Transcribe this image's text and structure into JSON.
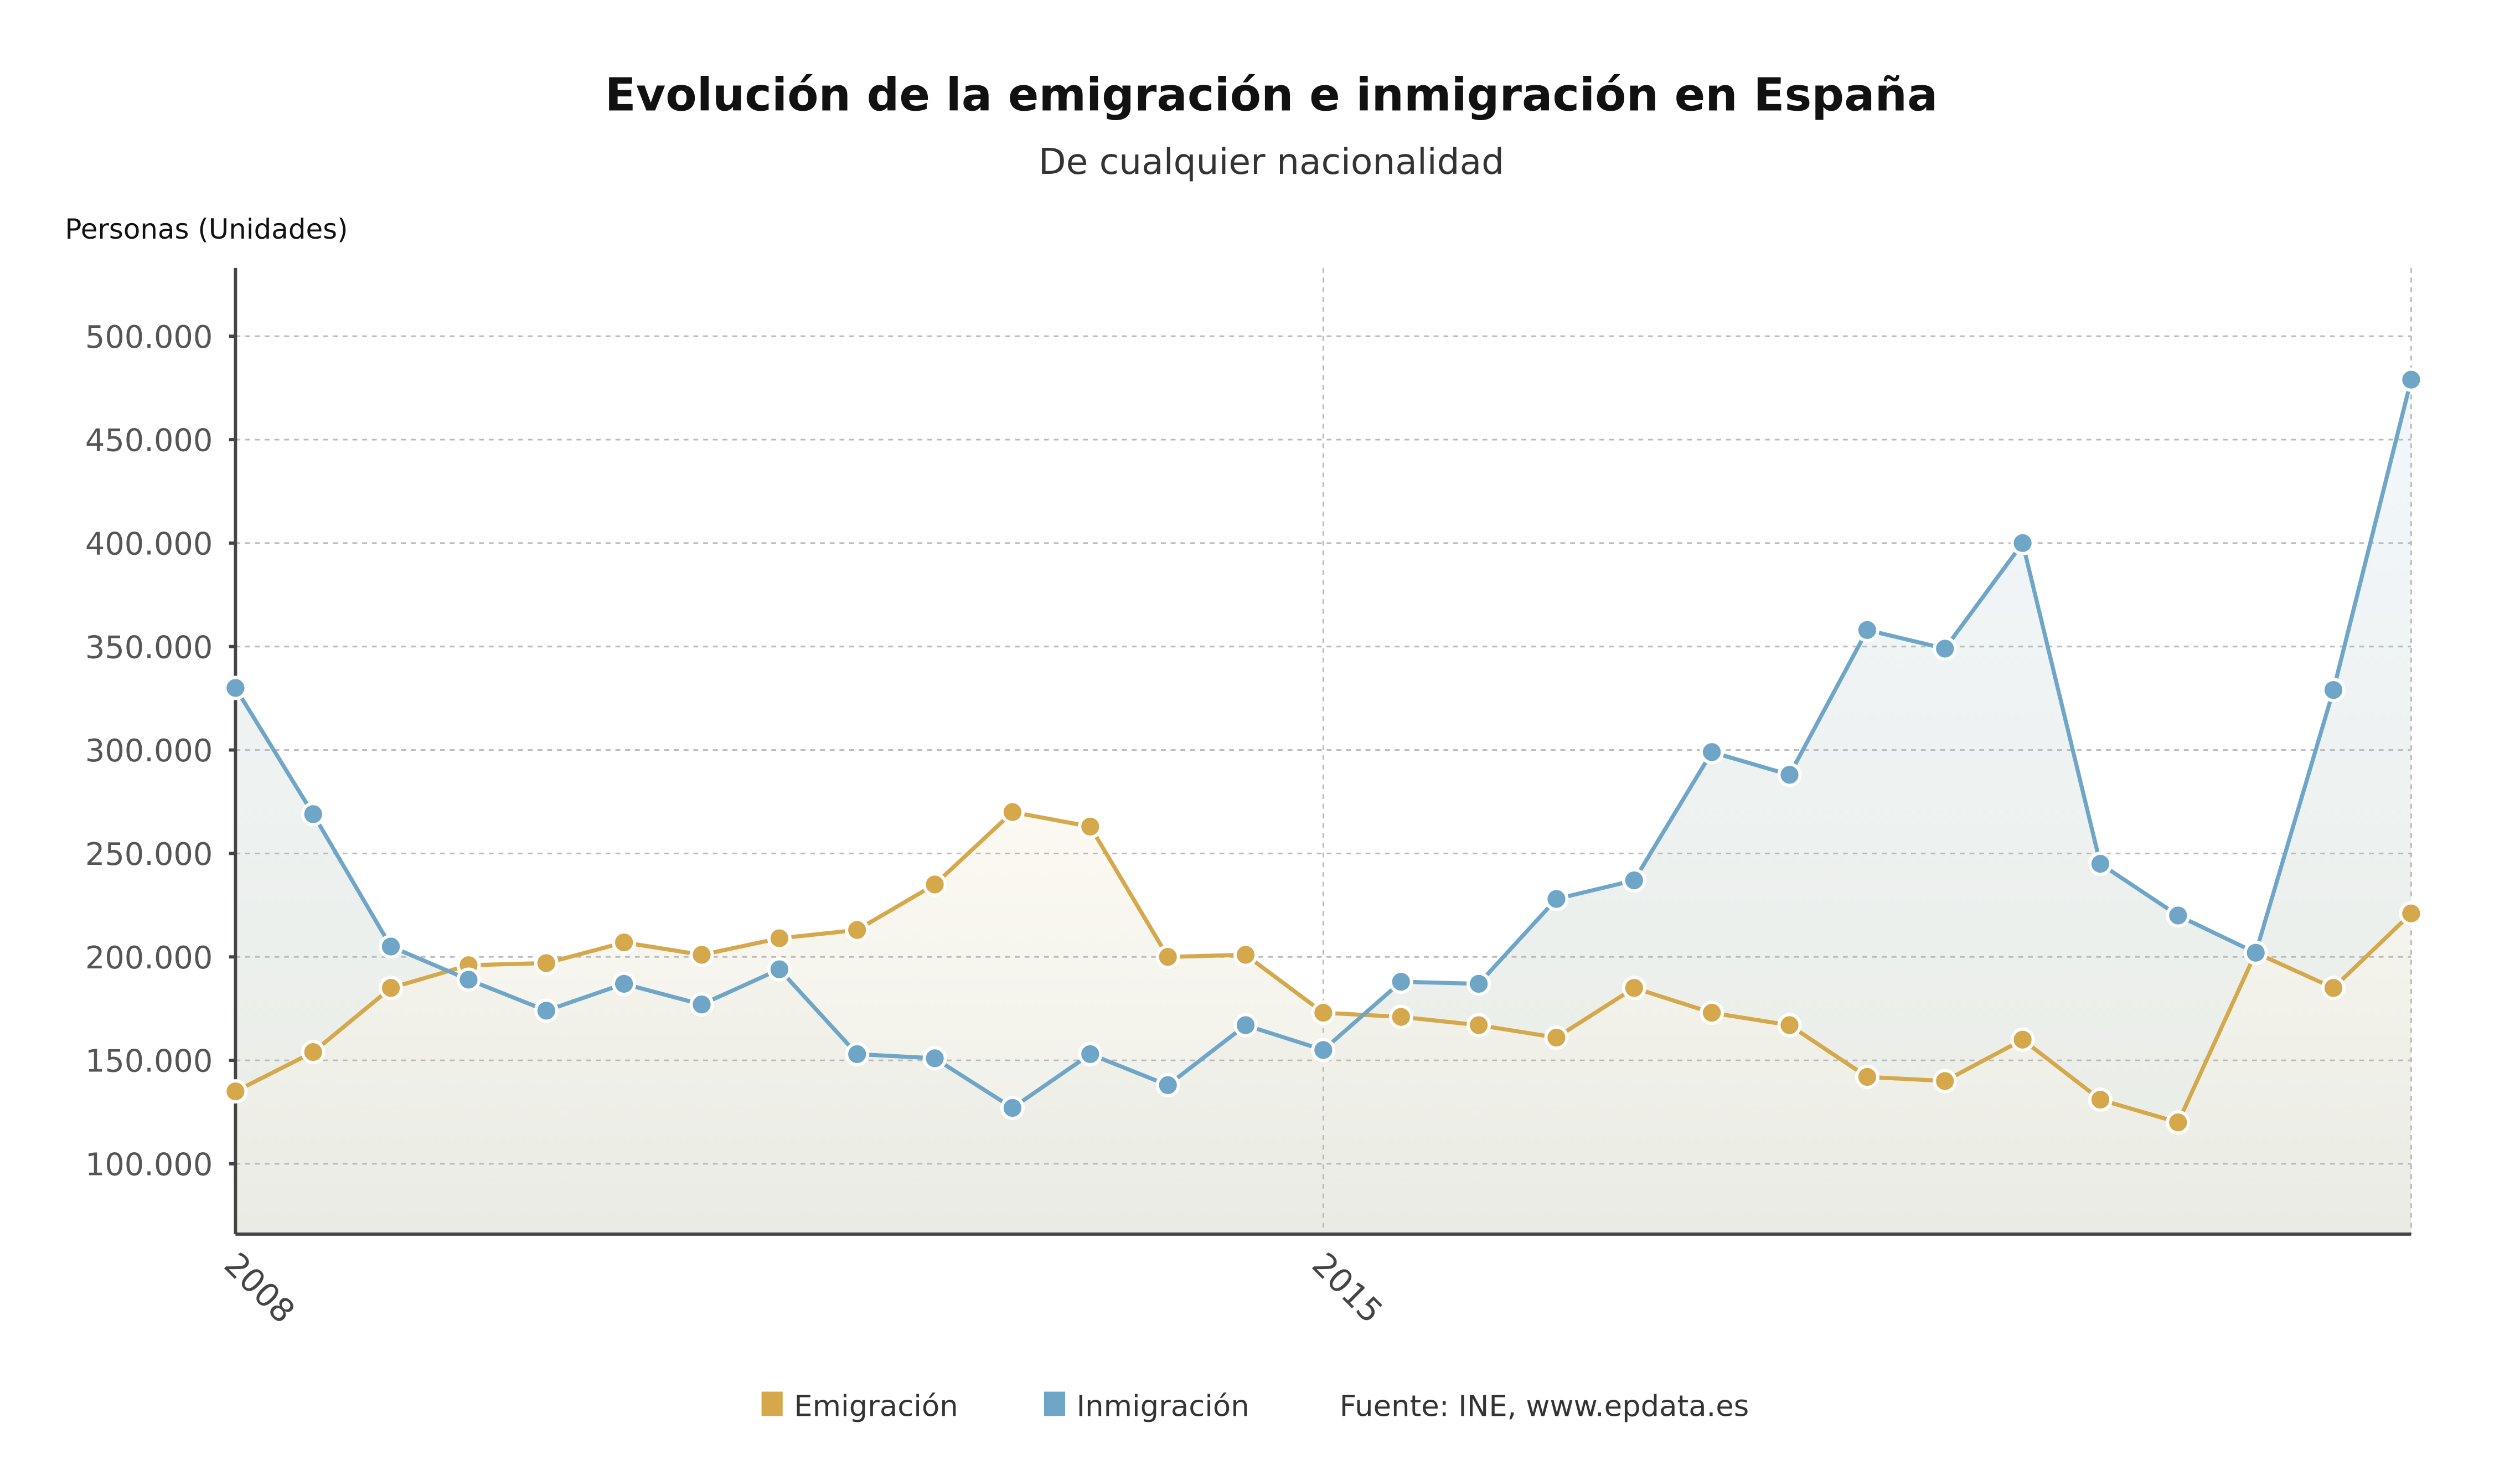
{
  "chart_data": {
    "type": "line",
    "title": "Evolución de la emigración e inmigración en España",
    "subtitle": "De cualquier nacionalidad",
    "ylabel": "Personas (Unidades)",
    "xlabel": "",
    "x_period": "semester",
    "x_range": [
      "2008",
      "2022"
    ],
    "ylim": [
      66000,
      533000
    ],
    "yticks": [
      100000,
      150000,
      200000,
      250000,
      300000,
      350000,
      400000,
      450000,
      500000
    ],
    "ytick_labels": [
      "100.000",
      "150.000",
      "200.000",
      "250.000",
      "300.000",
      "350.000",
      "400.000",
      "450.000",
      "500.000"
    ],
    "xticks": [
      {
        "index": 0,
        "label": "2008"
      },
      {
        "index": 14,
        "label": "2015"
      }
    ],
    "grid": true,
    "legend_position": "bottom",
    "series": [
      {
        "name": "Emigración",
        "color": "#d4a84b",
        "values": [
          135000,
          154000,
          185000,
          196000,
          197000,
          207000,
          201000,
          209000,
          213000,
          235000,
          270000,
          263000,
          200000,
          201000,
          173000,
          171000,
          167000,
          161000,
          185000,
          173000,
          167000,
          142000,
          140000,
          160000,
          131000,
          120000,
          202000,
          185000,
          221000
        ]
      },
      {
        "name": "Inmigración",
        "color": "#6fa6c8",
        "values": [
          330000,
          269000,
          205000,
          189000,
          174000,
          187000,
          177000,
          194000,
          153000,
          151000,
          127000,
          153000,
          138000,
          167000,
          155000,
          188000,
          187000,
          228000,
          237000,
          299000,
          288000,
          358000,
          349000,
          400000,
          245000,
          220000,
          202000,
          329000,
          479000
        ]
      }
    ],
    "source": "Fuente: INE, www.epdata.es"
  }
}
